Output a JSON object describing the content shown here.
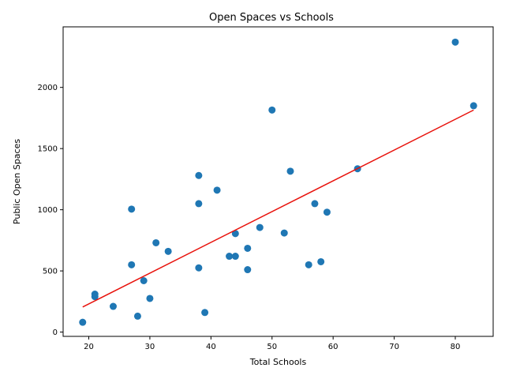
{
  "chart_data": {
    "type": "scatter",
    "title": "Open Spaces vs Schools",
    "xlabel": "Total Schools",
    "ylabel": "Public Open Spaces",
    "xlim": [
      15.8,
      86.2
    ],
    "ylim": [
      -35,
      2495
    ],
    "xticks": [
      20,
      30,
      40,
      50,
      60,
      70,
      80
    ],
    "yticks": [
      0,
      500,
      1000,
      1500,
      2000
    ],
    "grid": false,
    "point_color": "#1f77b4",
    "line_color": "#e8120c",
    "points": [
      {
        "x": 19,
        "y": 80
      },
      {
        "x": 21,
        "y": 290
      },
      {
        "x": 21,
        "y": 310
      },
      {
        "x": 24,
        "y": 210
      },
      {
        "x": 27,
        "y": 550
      },
      {
        "x": 27,
        "y": 1005
      },
      {
        "x": 28,
        "y": 130
      },
      {
        "x": 29,
        "y": 420
      },
      {
        "x": 30,
        "y": 275
      },
      {
        "x": 31,
        "y": 730
      },
      {
        "x": 33,
        "y": 660
      },
      {
        "x": 38,
        "y": 525
      },
      {
        "x": 38,
        "y": 1050
      },
      {
        "x": 38,
        "y": 1280
      },
      {
        "x": 39,
        "y": 160
      },
      {
        "x": 41,
        "y": 1160
      },
      {
        "x": 43,
        "y": 620
      },
      {
        "x": 44,
        "y": 620
      },
      {
        "x": 44,
        "y": 805
      },
      {
        "x": 46,
        "y": 510
      },
      {
        "x": 46,
        "y": 685
      },
      {
        "x": 48,
        "y": 855
      },
      {
        "x": 50,
        "y": 1815
      },
      {
        "x": 52,
        "y": 810
      },
      {
        "x": 53,
        "y": 1315
      },
      {
        "x": 56,
        "y": 550
      },
      {
        "x": 57,
        "y": 1050
      },
      {
        "x": 58,
        "y": 575
      },
      {
        "x": 59,
        "y": 980
      },
      {
        "x": 64,
        "y": 1335
      },
      {
        "x": 80,
        "y": 2370
      },
      {
        "x": 83,
        "y": 1850
      }
    ],
    "trendline": {
      "x": [
        19,
        83
      ],
      "y": [
        205,
        1815
      ]
    }
  }
}
